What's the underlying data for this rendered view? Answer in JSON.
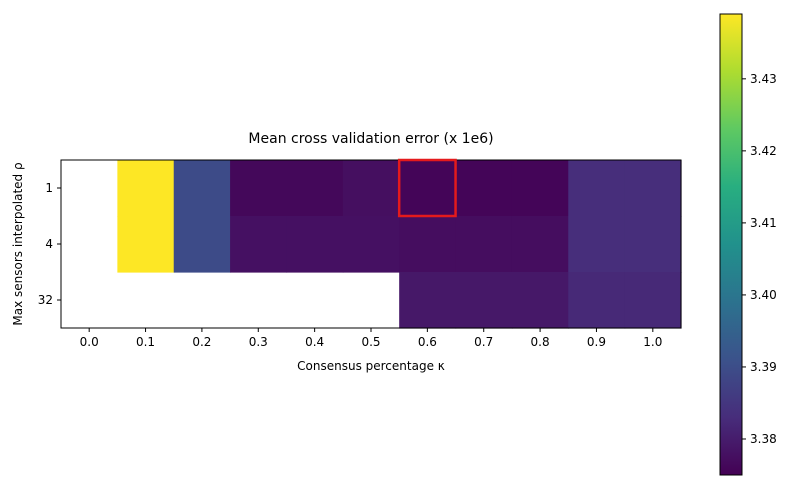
{
  "chart_data": {
    "type": "heatmap",
    "title": "Mean cross validation error (x 1e6)",
    "xlabel": "Consensus percentage κ",
    "ylabel": "Max sensors interpolated ρ",
    "x_categories": [
      "0.0",
      "0.1",
      "0.2",
      "0.3",
      "0.4",
      "0.5",
      "0.6",
      "0.7",
      "0.8",
      "0.9",
      "1.0"
    ],
    "y_categories": [
      "1",
      "4",
      "32"
    ],
    "values": [
      [
        null,
        3.439,
        3.3895,
        3.3762,
        3.3762,
        3.3775,
        3.3758,
        3.3758,
        3.3758,
        3.3832,
        3.3832
      ],
      [
        null,
        3.439,
        3.3895,
        3.3778,
        3.3778,
        3.3778,
        3.3772,
        3.3772,
        3.3772,
        3.3832,
        3.3832
      ],
      [
        null,
        null,
        null,
        null,
        null,
        null,
        3.3792,
        3.3792,
        3.3792,
        3.3822,
        3.3822
      ]
    ],
    "highlight": {
      "x": "0.6",
      "y": "1",
      "color": "#e41a1c"
    },
    "colormap": "viridis",
    "colorbar": {
      "range": [
        3.375,
        3.439
      ],
      "ticks": [
        3.38,
        3.39,
        3.4,
        3.41,
        3.42,
        3.43
      ],
      "tick_labels": [
        "3.38",
        "3.39",
        "3.40",
        "3.41",
        "3.42",
        "3.43"
      ]
    },
    "grid": false
  }
}
